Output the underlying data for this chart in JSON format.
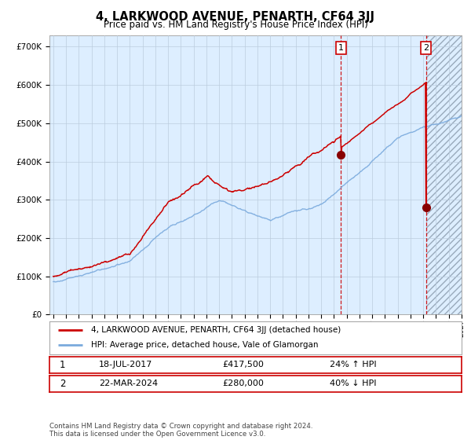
{
  "title": "4, LARKWOOD AVENUE, PENARTH, CF64 3JJ",
  "subtitle": "Price paid vs. HM Land Registry's House Price Index (HPI)",
  "legend_line1": "4, LARKWOOD AVENUE, PENARTH, CF64 3JJ (detached house)",
  "legend_line2": "HPI: Average price, detached house, Vale of Glamorgan",
  "annotation1_date": "18-JUL-2017",
  "annotation1_price": "£417,500",
  "annotation1_hpi": "24% ↑ HPI",
  "annotation2_date": "22-MAR-2024",
  "annotation2_price": "£280,000",
  "annotation2_hpi": "40% ↓ HPI",
  "footer": "Contains HM Land Registry data © Crown copyright and database right 2024.\nThis data is licensed under the Open Government Licence v3.0.",
  "hpi_color": "#7aaadd",
  "price_color": "#cc0000",
  "marker_color": "#880000",
  "bg_color": "#ddeeff",
  "grid_color": "#bbccdd",
  "ylim": [
    0,
    730000
  ],
  "start_year": 1995,
  "end_year": 2027,
  "sale1_year": 2017.55,
  "sale1_price": 417500,
  "sale2_year": 2024.22,
  "sale2_price": 280000
}
